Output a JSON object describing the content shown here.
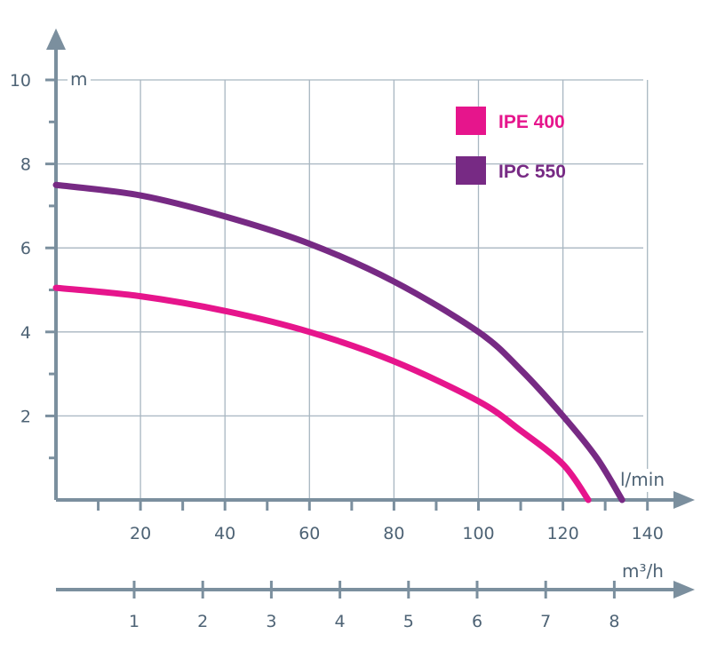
{
  "colors": {
    "axis": "#7b8f9e",
    "grid": "#a8b6c1",
    "text": "#4e6375"
  },
  "chart_data": {
    "type": "line",
    "xlabel": "l/min",
    "ylabel": "m",
    "xlim": [
      0,
      150
    ],
    "ylim": [
      0,
      10.5
    ],
    "x_ticks": [
      20,
      40,
      60,
      80,
      100,
      120,
      140
    ],
    "y_ticks": [
      2,
      4,
      6,
      8,
      10
    ],
    "grid": true,
    "legend_position": "top-right",
    "series": [
      {
        "name": "IPE 400",
        "color": "#e6158c",
        "x": [
          0,
          20,
          40,
          60,
          80,
          100,
          110,
          120,
          126
        ],
        "y": [
          5.05,
          4.85,
          4.5,
          4.0,
          3.3,
          2.35,
          1.65,
          0.85,
          0.0
        ]
      },
      {
        "name": "IPC 550",
        "color": "#772a84",
        "x": [
          0,
          20,
          40,
          60,
          80,
          100,
          110,
          120,
          128,
          134
        ],
        "y": [
          7.5,
          7.25,
          6.75,
          6.1,
          5.2,
          4.0,
          3.1,
          2.0,
          1.0,
          0.0
        ]
      }
    ],
    "secondary_axis": {
      "label": "m³/h",
      "ticks": [
        "1",
        "2",
        "3",
        "4",
        "5",
        "6",
        "7",
        "8"
      ]
    }
  }
}
